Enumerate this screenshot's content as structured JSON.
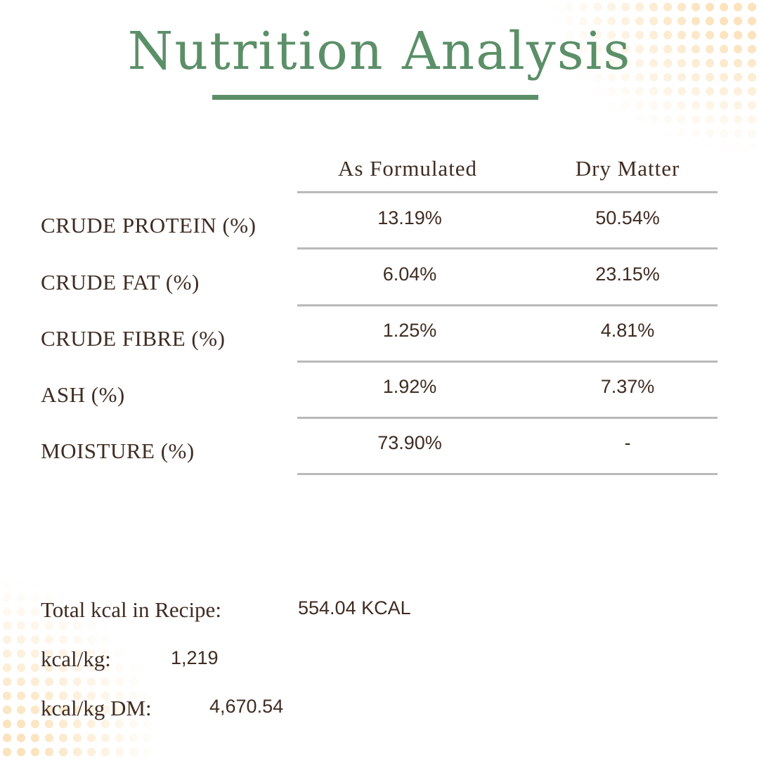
{
  "title": "Nutrition Analysis",
  "columns": [
    "As Formulated",
    "Dry Matter"
  ],
  "rows": [
    {
      "label": "CRUDE PROTEIN (%)",
      "as_formulated": "13.19%",
      "dry_matter": "50.54%"
    },
    {
      "label": "CRUDE FAT (%)",
      "as_formulated": "6.04%",
      "dry_matter": "23.15%"
    },
    {
      "label": "CRUDE FIBRE (%)",
      "as_formulated": "1.25%",
      "dry_matter": "4.81%"
    },
    {
      "label": "ASH (%)",
      "as_formulated": "1.92%",
      "dry_matter": "7.37%"
    },
    {
      "label": "MOISTURE (%)",
      "as_formulated": "73.90%",
      "dry_matter": "-"
    }
  ],
  "summary": [
    {
      "label": "Total kcal in Recipe:",
      "value": "554.04 KCAL"
    },
    {
      "label": "kcal/kg:",
      "value": "1,219"
    },
    {
      "label": "kcal/kg DM:",
      "value": "4,670.54"
    }
  ],
  "colors": {
    "accent": "#5b8f68",
    "text": "#3f2c22",
    "rule": "#b9b9b9",
    "dots": "#fbe3bd"
  }
}
